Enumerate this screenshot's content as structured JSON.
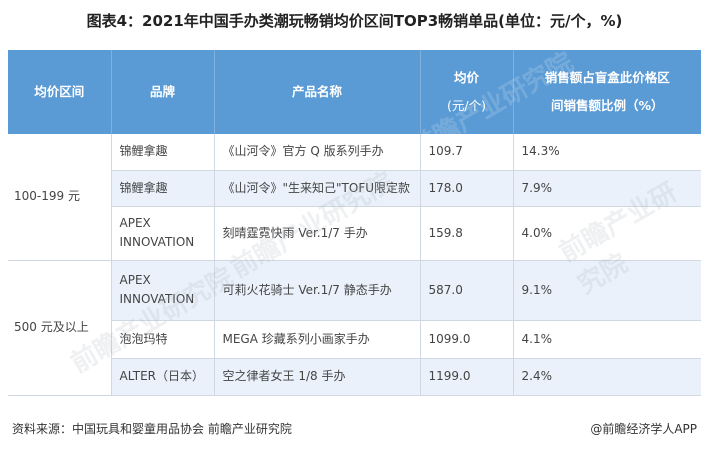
{
  "title": "图表4：2021年中国手办类潮玩畅销均价区间TOP3畅销单品(单位：元/个，%)",
  "table": {
    "headers": {
      "range": "均价区间",
      "brand": "品牌",
      "product": "产品名称",
      "price_l1": "均价",
      "price_l2": "(元/个)",
      "share_l1": "销售额占盲盒此价格区",
      "share_l2": "间销售额比例（%）"
    },
    "groups": [
      {
        "range": "100-199 元"
      },
      {
        "range": "500 元及以上"
      }
    ],
    "rows": [
      {
        "brand": "锦鲤拿趣",
        "product": "《山河令》官方 Q 版系列手办",
        "price": "109.7",
        "share": "14.3%"
      },
      {
        "brand": "锦鲤拿趣",
        "product": "《山河令》\"生来知己\"TOFU限定款",
        "price": "178.0",
        "share": "7.9%"
      },
      {
        "brand": "APEX INNOVATION",
        "product": "刻晴霆霓快雨 Ver.1/7 手办",
        "price": "159.8",
        "share": "4.0%"
      },
      {
        "brand": "APEX INNOVATION",
        "product": "可莉火花骑士 Ver.1/7 静态手办",
        "price": "587.0",
        "share": "9.1%"
      },
      {
        "brand": "泡泡玛特",
        "product": "MEGA 珍藏系列小画家手办",
        "price": "1099.0",
        "share": "4.1%"
      },
      {
        "brand": "ALTER（日本）",
        "product": "空之律者女王 1/8 手办",
        "price": "1199.0",
        "share": "2.4%"
      }
    ]
  },
  "footer": {
    "source": "资料来源：中国玩具和婴童用品协会 前瞻产业研究院",
    "credit": "@前瞻经济学人APP"
  },
  "watermark": "前瞻产业研究院"
}
